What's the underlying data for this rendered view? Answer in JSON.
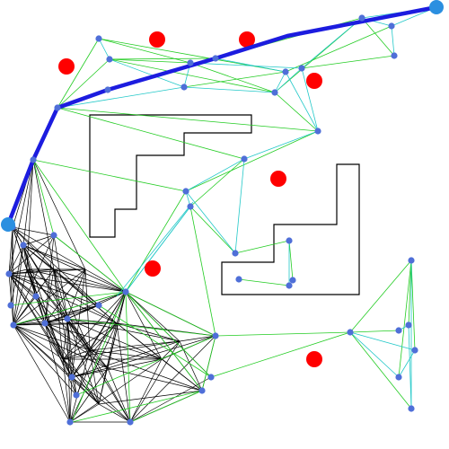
{
  "scene": {
    "background": "#ffffff",
    "colors": {
      "obstacle_outline": "#000000",
      "node": "#4f6fd8",
      "hazard": "#ff0000",
      "path": "#1c1cdf",
      "endpoint": "#2b8fe0",
      "edge_black": "#000000",
      "edge_green": "#22cc22",
      "edge_cyan": "#22cccc"
    },
    "icons": {
      "node": "dot",
      "hazard": "filled-circle",
      "endpoint": "filled-circle"
    }
  }
}
